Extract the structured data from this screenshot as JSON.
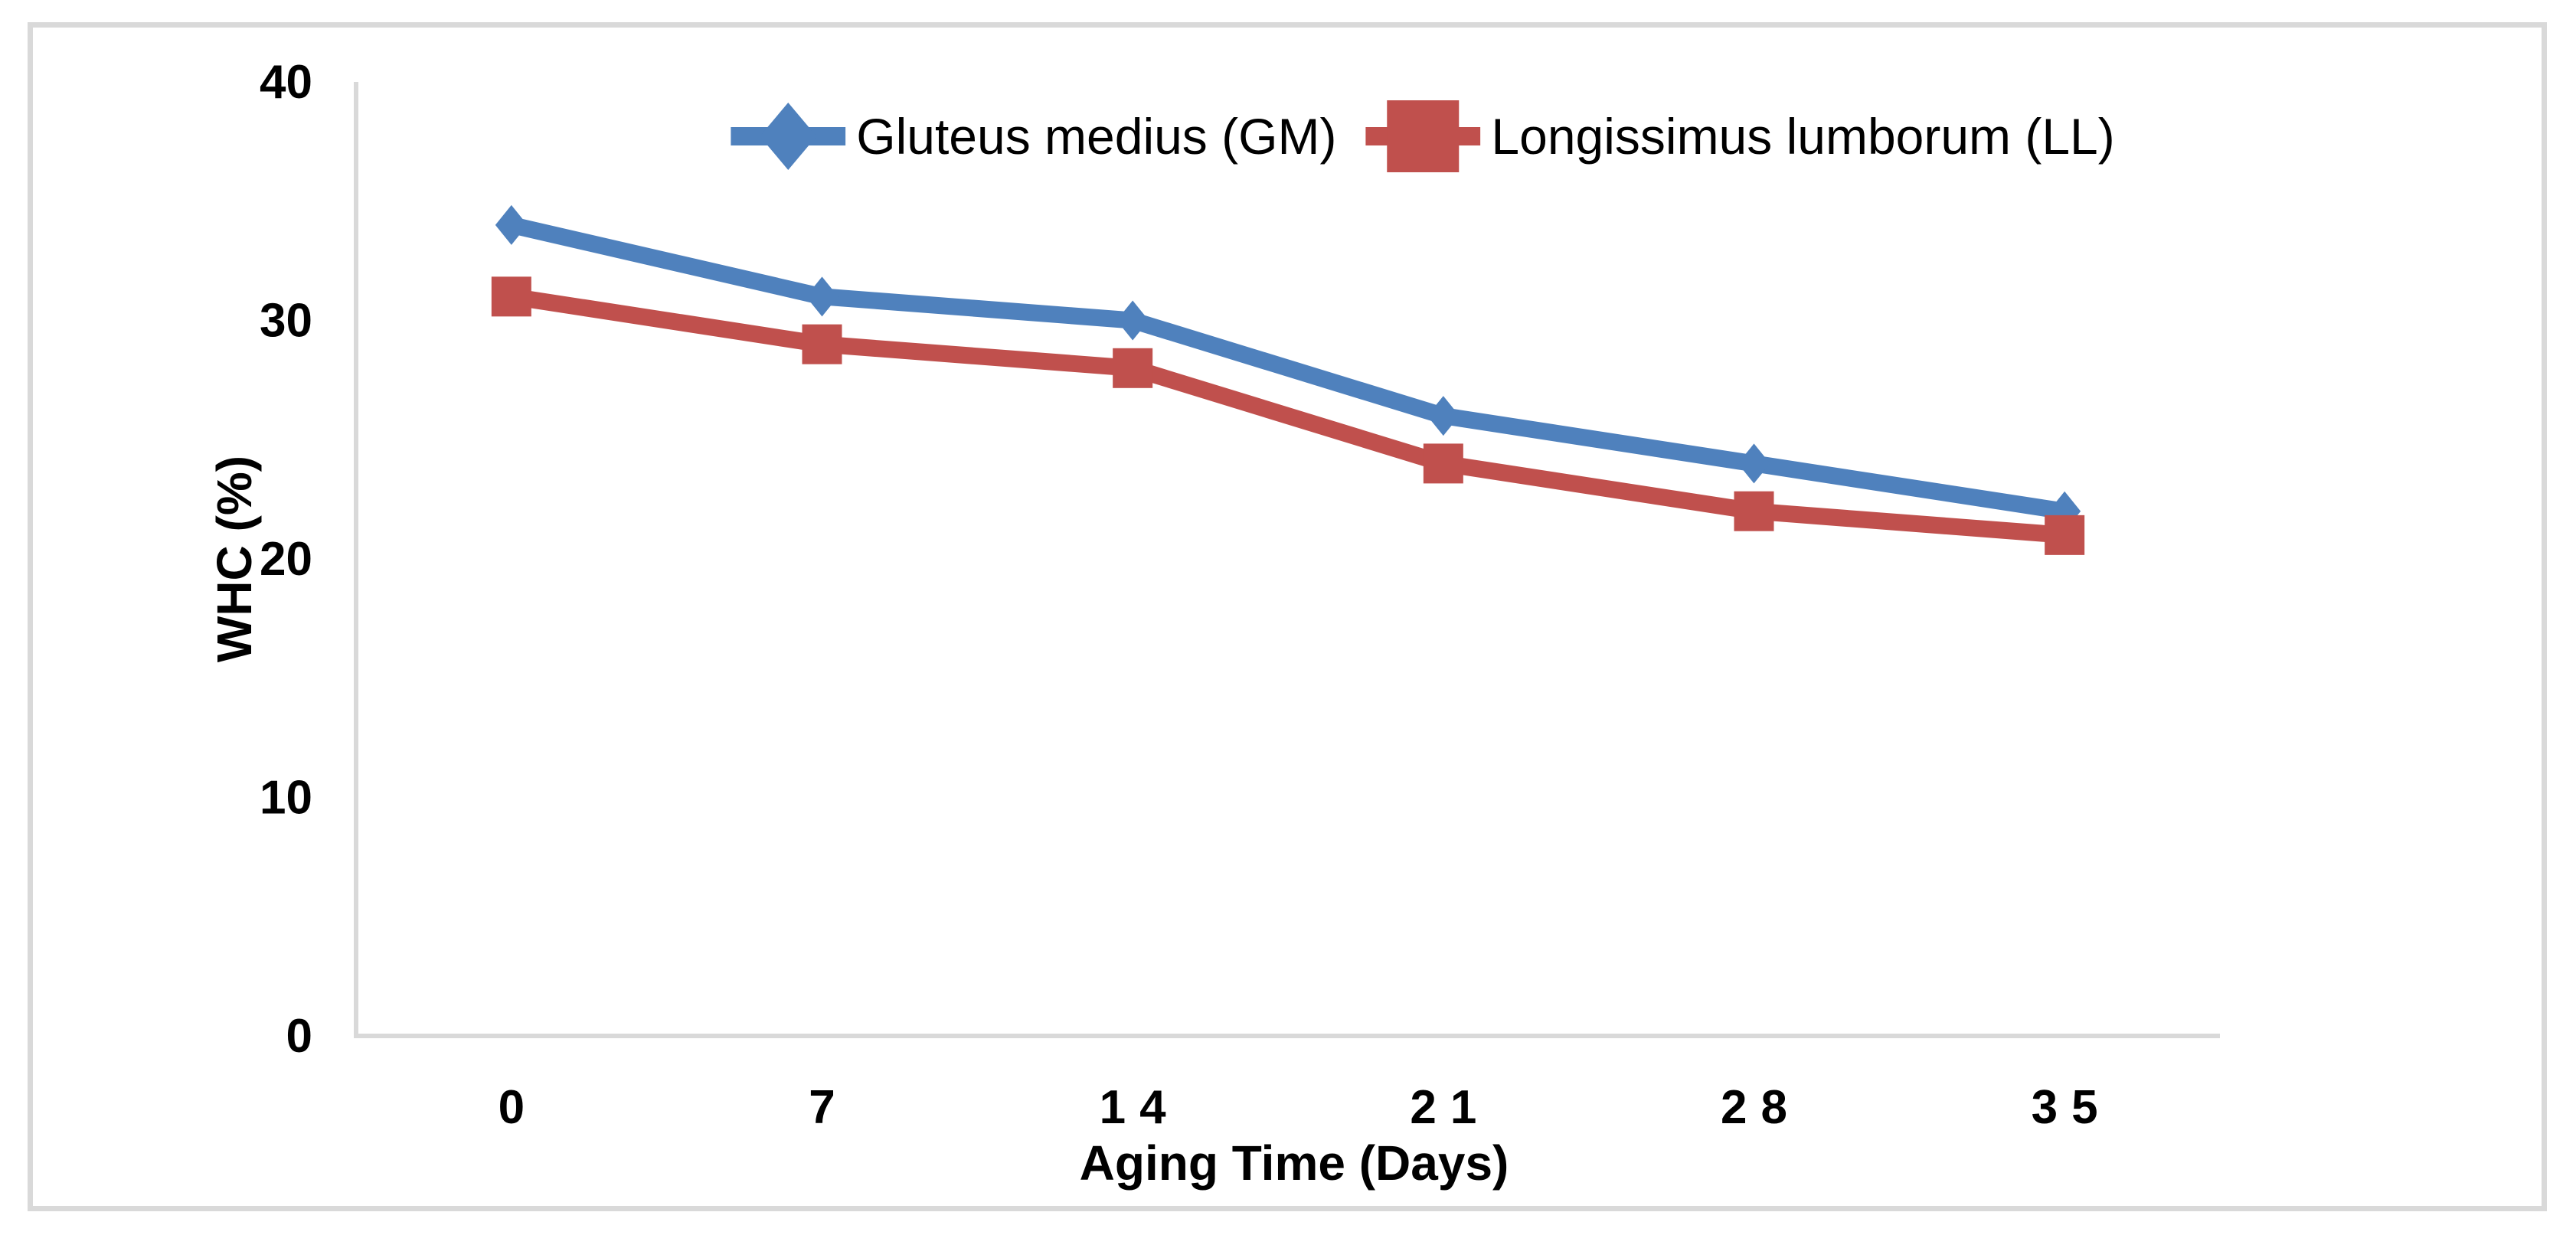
{
  "chart_data": {
    "type": "line",
    "categories": [
      "0",
      "7",
      "14",
      "21",
      "28",
      "35"
    ],
    "series": [
      {
        "name": "Gluteus medius (GM)",
        "values": [
          34,
          31,
          30,
          26,
          24,
          22
        ],
        "color": "#4F81BD",
        "marker": "diamond"
      },
      {
        "name": "Longissimus lumborum (LL)",
        "values": [
          31,
          29,
          28,
          24,
          22,
          21
        ],
        "color": "#C0504D",
        "marker": "square"
      }
    ],
    "title": "",
    "xlabel": "Aging Time (Days)",
    "ylabel": "WHC (%)",
    "ylim": [
      0,
      40
    ],
    "yticks": [
      0,
      10,
      20,
      30,
      40
    ],
    "grid": false,
    "legend_position": "top-center"
  },
  "colors": {
    "axis_line": "#D9D9D9",
    "frame_border": "#D9D9D9",
    "tick_text": "#000000",
    "series_gm": "#4F81BD",
    "series_ll": "#C0504D"
  }
}
